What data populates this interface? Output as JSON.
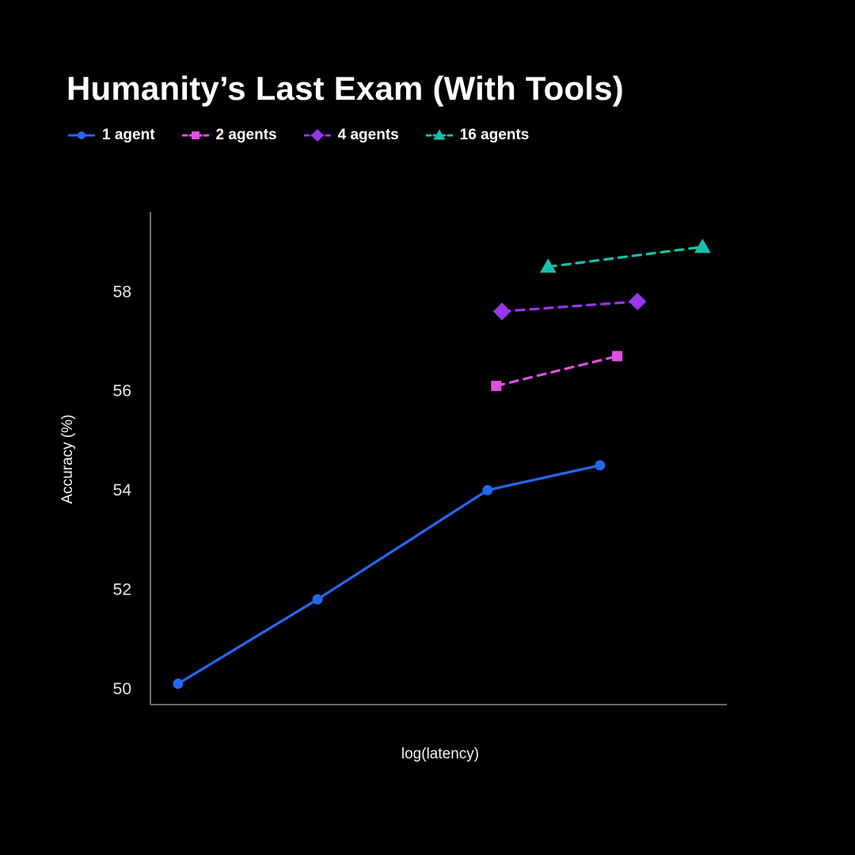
{
  "title": "Humanity’s Last Exam (With Tools)",
  "chart_data": {
    "type": "line",
    "title": "Humanity’s Last Exam (With Tools)",
    "xlabel": "log(latency)",
    "ylabel": "Accuracy (%)",
    "xlim": [
      0,
      1
    ],
    "ylim": [
      49.68,
      59.6
    ],
    "yticks": [
      50,
      52,
      54,
      56,
      58
    ],
    "xticks": [],
    "grid": false,
    "legend_position": "top-left-above-plot",
    "background_color": "#000000",
    "axis_color": "#878d96",
    "tick_label_color": "#e3e5e8",
    "text_color": "#ffffff",
    "series": [
      {
        "name": "1 agent",
        "color": "#2468f2",
        "marker": "circle",
        "line_style": "solid",
        "points": [
          [
            0.048,
            50.1
          ],
          [
            0.29,
            51.8
          ],
          [
            0.585,
            54.0
          ],
          [
            0.78,
            54.5
          ]
        ]
      },
      {
        "name": "2 agents",
        "color": "#e14fe1",
        "marker": "square",
        "line_style": "dashed",
        "points": [
          [
            0.6,
            56.1
          ],
          [
            0.81,
            56.7
          ]
        ]
      },
      {
        "name": "4 agents",
        "color": "#9a35f0",
        "marker": "diamond",
        "line_style": "dashed",
        "points": [
          [
            0.61,
            57.6
          ],
          [
            0.845,
            57.8
          ]
        ]
      },
      {
        "name": "16 agents",
        "color": "#19c0a9",
        "marker": "triangle",
        "line_style": "dashed",
        "points": [
          [
            0.69,
            58.5
          ],
          [
            0.958,
            58.9
          ]
        ]
      }
    ]
  }
}
